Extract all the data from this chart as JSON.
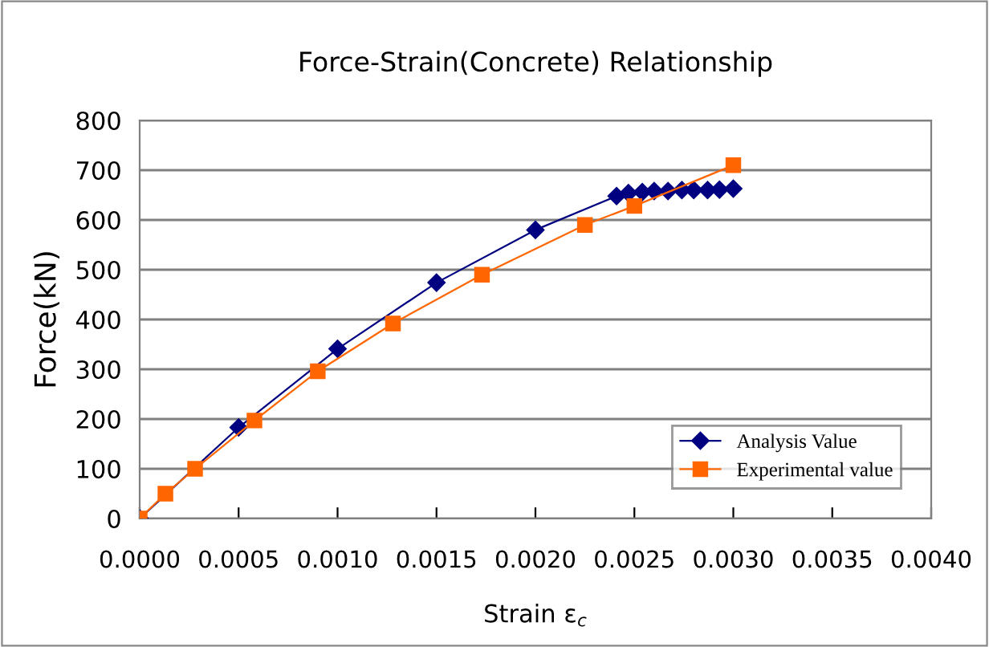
{
  "chart_data": {
    "type": "line",
    "title": "Force-Strain(Concrete) Relationship",
    "xlabel": "Strain ε$_{c}$",
    "ylabel": "Force(kN)",
    "xlim": [
      0,
      0.004
    ],
    "xticks": [
      {
        "value": 0,
        "label": "0.0000"
      },
      {
        "value": 0.0005,
        "label": "0.0005"
      },
      {
        "value": 0.001,
        "label": "0.0010"
      },
      {
        "value": 0.0015,
        "label": "0.0015"
      },
      {
        "value": 0.002,
        "label": "0.0020"
      },
      {
        "value": 0.0025,
        "label": "0.0025"
      },
      {
        "value": 0.003,
        "label": "0.0030"
      },
      {
        "value": 0.0035,
        "label": "0.0035"
      },
      {
        "value": 0.004,
        "label": "0.0040"
      }
    ],
    "ylim": [
      0,
      800
    ],
    "yticks": [
      0,
      100,
      200,
      300,
      400,
      500,
      600,
      700,
      800
    ],
    "grid": "y",
    "legend": "bottom right",
    "series": [
      {
        "name": "Analysis Value",
        "color": "#000080",
        "marker": "diamond",
        "x": [
          0,
          0.0005,
          0.001,
          0.0015,
          0.002,
          0.00241,
          0.00247,
          0.00254,
          0.0026,
          0.00267,
          0.00274,
          0.0028,
          0.00287,
          0.00293,
          0.003
        ],
        "values": [
          0,
          183,
          341,
          474,
          580,
          648,
          654,
          656,
          658,
          658,
          660,
          660,
          660,
          661,
          663
        ]
      },
      {
        "name": "Experimental value",
        "color": "#ff6600",
        "marker": "square",
        "x": [
          0,
          0.00013,
          0.00028,
          0.00058,
          0.0009,
          0.00128,
          0.00173,
          0.00225,
          0.0025,
          0.003
        ],
        "values": [
          0,
          50,
          100,
          197,
          296,
          392,
          490,
          590,
          628,
          710
        ]
      }
    ]
  }
}
